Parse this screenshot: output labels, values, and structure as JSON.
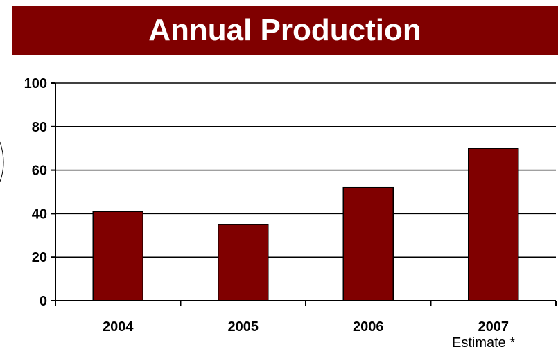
{
  "colors": {
    "banner": "#800000",
    "bar": "#800000",
    "grid": "#000000"
  },
  "chart_data": {
    "type": "bar",
    "title": "Annual Production",
    "categories": [
      "2004",
      "2005",
      "2006",
      "2007"
    ],
    "values": [
      41,
      35,
      52,
      70
    ],
    "category_notes": [
      "",
      "",
      "",
      "Estimate *"
    ],
    "ylim": [
      0,
      100
    ],
    "yticks": [
      0,
      20,
      40,
      60,
      80,
      100
    ],
    "xlabel": "",
    "ylabel": "",
    "grid": true,
    "legend": "none"
  }
}
